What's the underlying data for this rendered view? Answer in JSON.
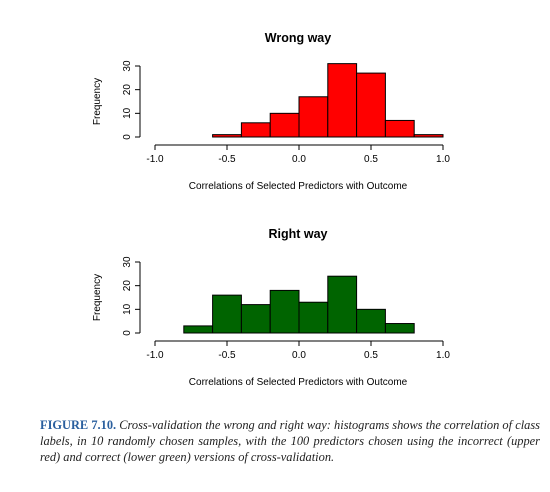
{
  "chart_data": [
    {
      "type": "bar",
      "title": "Wrong way",
      "xlabel": "Correlations of Selected Predictors with Outcome",
      "ylabel": "Frequency",
      "xlim": [
        -1.0,
        1.0
      ],
      "ylim": [
        0,
        30
      ],
      "x_ticks": [
        "-1.0",
        "-0.5",
        "0.0",
        "0.5",
        "1.0"
      ],
      "y_ticks": [
        "0",
        "10",
        "20",
        "30"
      ],
      "bin_edges": [
        -0.6,
        -0.4,
        -0.2,
        0.0,
        0.2,
        0.4,
        0.6,
        0.8,
        1.0
      ],
      "values": [
        1,
        6,
        10,
        17,
        31,
        27,
        7,
        1
      ],
      "color": "#ff0000"
    },
    {
      "type": "bar",
      "title": "Right way",
      "xlabel": "Correlations of Selected Predictors with Outcome",
      "ylabel": "Frequency",
      "xlim": [
        -1.0,
        1.0
      ],
      "ylim": [
        0,
        30
      ],
      "x_ticks": [
        "-1.0",
        "-0.5",
        "0.0",
        "0.5",
        "1.0"
      ],
      "y_ticks": [
        "0",
        "10",
        "20",
        "30"
      ],
      "bin_edges": [
        -0.8,
        -0.6,
        -0.4,
        -0.2,
        0.0,
        0.2,
        0.4,
        0.6,
        0.8
      ],
      "values": [
        3,
        16,
        12,
        18,
        13,
        24,
        10,
        4
      ],
      "color": "#006400"
    }
  ],
  "caption": {
    "label": "FIGURE 7.10.",
    "text": "Cross-validation the wrong and right way: histograms shows the correlation of class labels, in 10 randomly chosen samples, with the 100 predictors chosen using the incorrect (upper red) and correct (lower green) versions of cross-validation."
  }
}
